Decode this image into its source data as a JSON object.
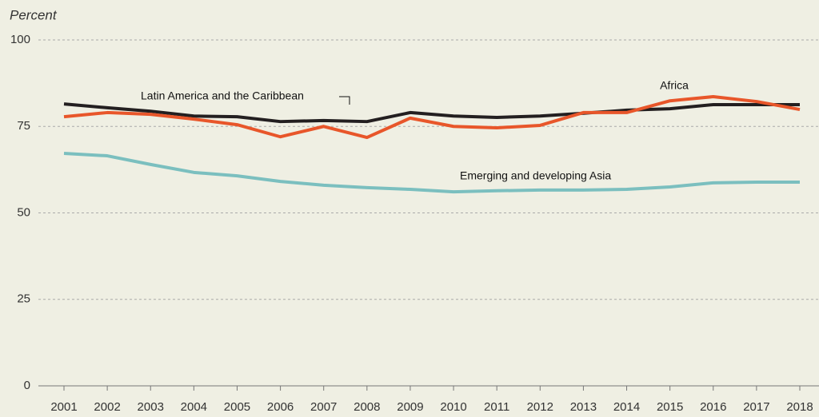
{
  "chart_data": {
    "type": "line",
    "title": "Percent",
    "categories": [
      "2001",
      "2002",
      "2003",
      "2004",
      "2005",
      "2006",
      "2007",
      "2008",
      "2009",
      "2010",
      "2011",
      "2012",
      "2013",
      "2014",
      "2015",
      "2016",
      "2017",
      "2018"
    ],
    "series": [
      {
        "name": "Latin America and the Caribbean",
        "color": "#231f20",
        "values": [
          81.5,
          80.4,
          79.4,
          78,
          77.8,
          76.4,
          76.7,
          76.4,
          79,
          78,
          77.6,
          78,
          78.8,
          79.7,
          80.1,
          81.3,
          81.3,
          81.3
        ]
      },
      {
        "name": "Africa",
        "color": "#e8562a",
        "values": [
          77.8,
          79,
          78.5,
          77.1,
          75.5,
          72,
          75,
          71.8,
          77.4,
          75,
          74.6,
          75.3,
          79,
          79,
          82.4,
          83.6,
          82.2,
          79.9
        ]
      },
      {
        "name": "Emerging and developing Asia",
        "color": "#7bbfbf",
        "values": [
          67.2,
          66.5,
          64,
          61.7,
          60.7,
          59.1,
          58,
          57.3,
          56.8,
          56.1,
          56.4,
          56.6,
          56.6,
          56.8,
          57.5,
          58.7,
          58.9,
          58.9
        ]
      }
    ],
    "ylim": [
      0,
      100
    ],
    "yticks": [
      0,
      25,
      50,
      75,
      100
    ],
    "grid": true
  }
}
